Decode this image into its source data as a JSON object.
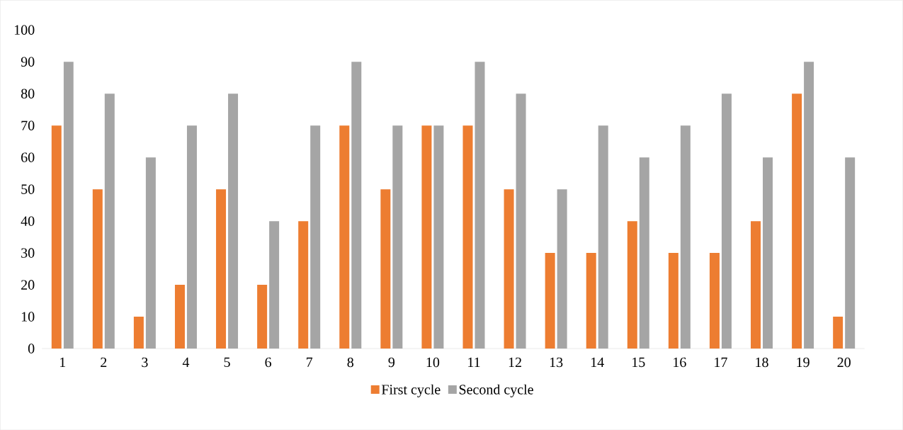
{
  "chart_data": {
    "type": "bar",
    "categories": [
      "1",
      "2",
      "3",
      "4",
      "5",
      "6",
      "7",
      "8",
      "9",
      "10",
      "11",
      "12",
      "13",
      "14",
      "15",
      "16",
      "17",
      "18",
      "19",
      "20"
    ],
    "series": [
      {
        "name": "First cycle",
        "color": "#ed7d31",
        "values": [
          70,
          50,
          10,
          20,
          50,
          20,
          40,
          70,
          50,
          70,
          70,
          50,
          30,
          30,
          40,
          30,
          30,
          40,
          80,
          10
        ]
      },
      {
        "name": "Second cycle",
        "color": "#a5a5a5",
        "values": [
          90,
          80,
          60,
          70,
          80,
          40,
          70,
          90,
          70,
          70,
          90,
          80,
          50,
          70,
          60,
          70,
          80,
          60,
          90,
          60
        ]
      }
    ],
    "ylim": [
      0,
      100
    ],
    "yticks": [
      0,
      10,
      20,
      30,
      40,
      50,
      60,
      70,
      80,
      90,
      100
    ],
    "grid": false,
    "legend": "bottom"
  }
}
